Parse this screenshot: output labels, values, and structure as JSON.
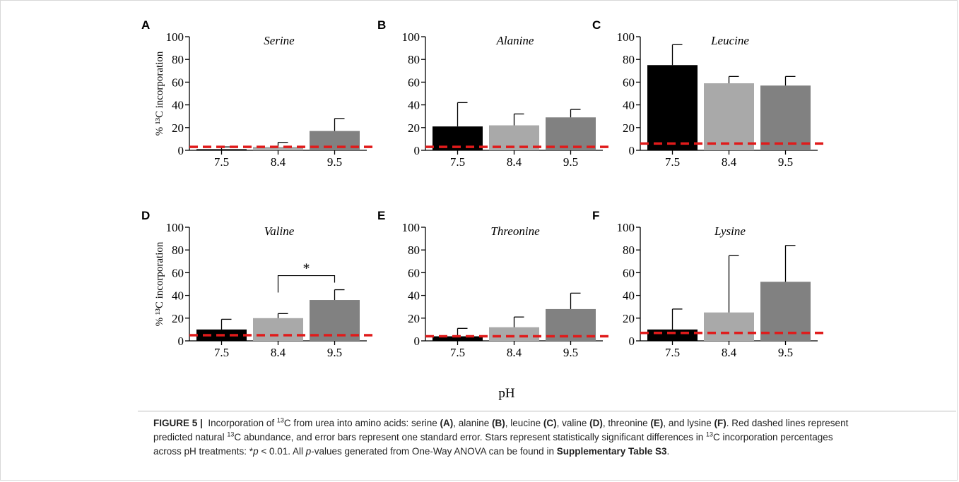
{
  "colors": {
    "bar_ph75": "#000000",
    "bar_ph84": "#a9a9a9",
    "bar_ph95": "#818181",
    "dashed_line": "#e01b1b"
  },
  "shared_x_label": "pH",
  "shared_y_label": "% ¹³C incorporation",
  "caption": {
    "figure_label": "FIGURE 5 |",
    "line1_a": "Incorporation of ",
    "sup_13": "13",
    "line1_b": "C from urea into amino acids: serine ",
    "ref_a": "(A)",
    "line1_c": ", alanine ",
    "ref_b": "(B)",
    "line1_d": ", leucine ",
    "ref_c": "(C)",
    "line1_e": ", valine ",
    "ref_d": "(D)",
    "line1_f": ", threonine ",
    "ref_e": "(E)",
    "line1_g": ", and lysine ",
    "ref_f": "(F)",
    "line1_h": ". Red dashed lines represent",
    "line2_a": "predicted natural ",
    "line2_b": "C abundance, and error bars represent one standard error. Stars represent statistically significant differences in ",
    "line2_c": "C incorporation percentages",
    "line3_a": "across pH treatments: *",
    "p_italic": "p",
    "line3_b": " < 0.01. All ",
    "line3_c": "-values generated from One-Way ANOVA can be found in ",
    "supp_bold": "Supplementary Table S3",
    "line3_d": "."
  },
  "chart_data": [
    {
      "panel": "A",
      "type": "bar",
      "title": "Serine",
      "categories": [
        "7.5",
        "8.4",
        "9.5"
      ],
      "values": [
        1,
        3,
        17
      ],
      "errors": [
        2,
        4,
        11
      ],
      "natural_abundance": 3,
      "ylim": [
        0,
        100
      ],
      "yticks": [
        0,
        20,
        40,
        60,
        80,
        100
      ],
      "ylabel": "% ¹³C incorporation",
      "xlabel": "pH"
    },
    {
      "panel": "B",
      "type": "bar",
      "title": "Alanine",
      "categories": [
        "7.5",
        "8.4",
        "9.5"
      ],
      "values": [
        21,
        22,
        29
      ],
      "errors": [
        21,
        10,
        7
      ],
      "natural_abundance": 3,
      "ylim": [
        0,
        100
      ],
      "yticks": [
        0,
        20,
        40,
        60,
        80,
        100
      ],
      "ylabel": "",
      "xlabel": "pH"
    },
    {
      "panel": "C",
      "type": "bar",
      "title": "Leucine",
      "categories": [
        "7.5",
        "8.4",
        "9.5"
      ],
      "values": [
        75,
        59,
        57
      ],
      "errors": [
        18,
        6,
        8
      ],
      "natural_abundance": 6,
      "ylim": [
        0,
        100
      ],
      "yticks": [
        0,
        20,
        40,
        60,
        80,
        100
      ],
      "ylabel": "",
      "xlabel": "pH"
    },
    {
      "panel": "D",
      "type": "bar",
      "title": "Valine",
      "categories": [
        "7.5",
        "8.4",
        "9.5"
      ],
      "values": [
        10,
        20,
        36
      ],
      "errors": [
        9,
        4,
        9
      ],
      "natural_abundance": 5,
      "ylim": [
        0,
        100
      ],
      "yticks": [
        0,
        20,
        40,
        60,
        80,
        100
      ],
      "ylabel": "% ¹³C incorporation",
      "xlabel": "pH",
      "significance": {
        "between": [
          "8.4",
          "9.5"
        ],
        "label": "*"
      }
    },
    {
      "panel": "E",
      "type": "bar",
      "title": "Threonine",
      "categories": [
        "7.5",
        "8.4",
        "9.5"
      ],
      "values": [
        4,
        12,
        28
      ],
      "errors": [
        7,
        9,
        14
      ],
      "natural_abundance": 4,
      "ylim": [
        0,
        100
      ],
      "yticks": [
        0,
        20,
        40,
        60,
        80,
        100
      ],
      "ylabel": "",
      "xlabel": "pH"
    },
    {
      "panel": "F",
      "type": "bar",
      "title": "Lysine",
      "categories": [
        "7.5",
        "8.4",
        "9.5"
      ],
      "values": [
        10,
        25,
        52
      ],
      "errors": [
        18,
        50,
        32
      ],
      "natural_abundance": 7,
      "ylim": [
        0,
        100
      ],
      "yticks": [
        0,
        20,
        40,
        60,
        80,
        100
      ],
      "ylabel": "",
      "xlabel": "pH"
    }
  ]
}
